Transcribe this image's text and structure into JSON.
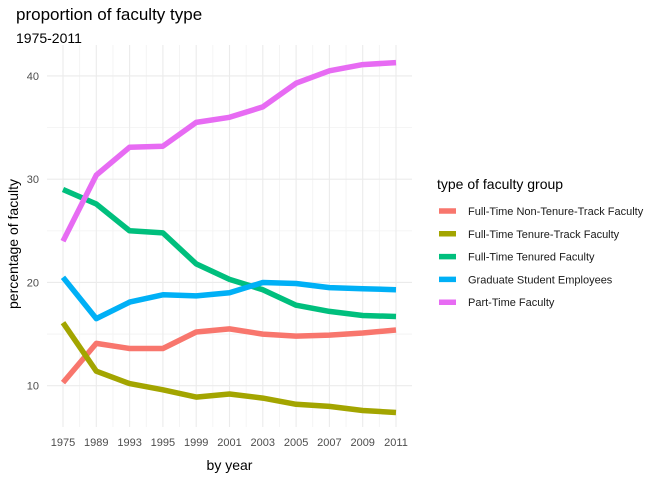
{
  "chart_data": {
    "type": "line",
    "title": "proportion of faculty type",
    "subtitle": "1975-2011",
    "xlabel": "by year",
    "ylabel": "percentage of faculty",
    "categories": [
      "1975",
      "1989",
      "1993",
      "1995",
      "1999",
      "2001",
      "2003",
      "2005",
      "2007",
      "2009",
      "2011"
    ],
    "ylim": [
      6.0,
      43.0
    ],
    "yticks": [
      10,
      20,
      30,
      40
    ],
    "grid": true,
    "legend_title": "type of faculty group",
    "legend_position": "right",
    "series": [
      {
        "name": "Full-Time Non-Tenure-Track Faculty",
        "color": "#F8766D",
        "values": [
          10.3,
          14.1,
          13.6,
          13.6,
          15.2,
          15.5,
          15.0,
          14.8,
          14.9,
          15.1,
          15.4
        ]
      },
      {
        "name": "Full-Time Tenure-Track Faculty",
        "color": "#A3A500",
        "values": [
          16.1,
          11.4,
          10.2,
          9.6,
          8.9,
          9.2,
          8.8,
          8.2,
          8.0,
          7.6,
          7.4
        ]
      },
      {
        "name": "Full-Time Tenured Faculty",
        "color": "#00BF7D",
        "values": [
          29.0,
          27.6,
          25.0,
          24.8,
          21.8,
          20.3,
          19.3,
          17.8,
          17.2,
          16.8,
          16.7
        ]
      },
      {
        "name": "Graduate Student Employees",
        "color": "#00B0F6",
        "values": [
          20.5,
          16.5,
          18.1,
          18.8,
          18.7,
          19.0,
          20.0,
          19.9,
          19.5,
          19.4,
          19.3
        ]
      },
      {
        "name": "Part-Time Faculty",
        "color": "#E76BF3",
        "values": [
          24.0,
          30.4,
          33.1,
          33.2,
          35.5,
          36.0,
          37.0,
          39.3,
          40.5,
          41.1,
          41.3
        ]
      }
    ]
  }
}
